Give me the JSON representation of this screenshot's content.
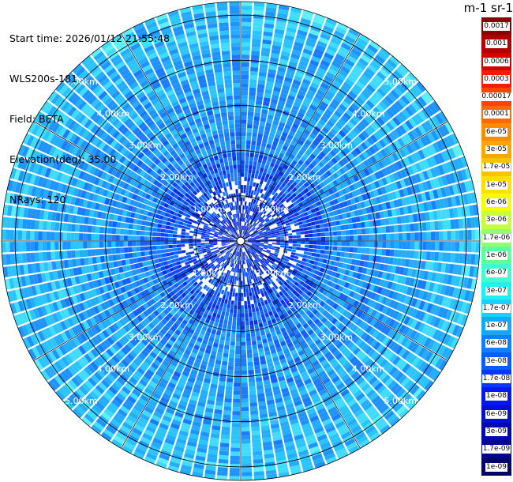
{
  "info": {
    "start_time": "Start time: 2026/01/12 21:55:48",
    "instrument": "WLS200s-181",
    "field": "Field: BETA",
    "elevation": "Elevation(deg): 35.00",
    "nrays": "NRays: 120"
  },
  "colorbar": {
    "title": "m-1 sr-1",
    "labels": [
      "0.0017",
      "0.001",
      "0.0006",
      "0.0003",
      "0.00017",
      "0.0001",
      "6e-05",
      "3e-05",
      "1.7e-05",
      "1e-05",
      "6e-06",
      "3e-06",
      "1.7e-06",
      "1e-06",
      "6e-07",
      "3e-07",
      "1.7e-07",
      "1e-07",
      "6e-08",
      "3e-08",
      "1.7e-08",
      "1e-08",
      "6e-09",
      "3e-09",
      "1.7e-09",
      "1e-09"
    ],
    "colors": [
      "#8b0000",
      "#b00000",
      "#d40000",
      "#ff1a00",
      "#ff4500",
      "#ff6a00",
      "#ff8c00",
      "#ffa500",
      "#ffc200",
      "#ffe000",
      "#f5ff00",
      "#c8ff3c",
      "#90ff70",
      "#60ffa0",
      "#40ffd0",
      "#20f0f0",
      "#1ad0ff",
      "#14a8ff",
      "#1080ff",
      "#0a5cff",
      "#0838ff",
      "#0618f0",
      "#0410d0",
      "#0208b0",
      "#020690",
      "#02046a"
    ]
  },
  "range_rings": {
    "labels": [
      "1.00km",
      "2.00km",
      "3.00km",
      "4.00km",
      "5.00km"
    ],
    "values_km": [
      1,
      2,
      3,
      4,
      5
    ]
  },
  "nrays": 120
}
